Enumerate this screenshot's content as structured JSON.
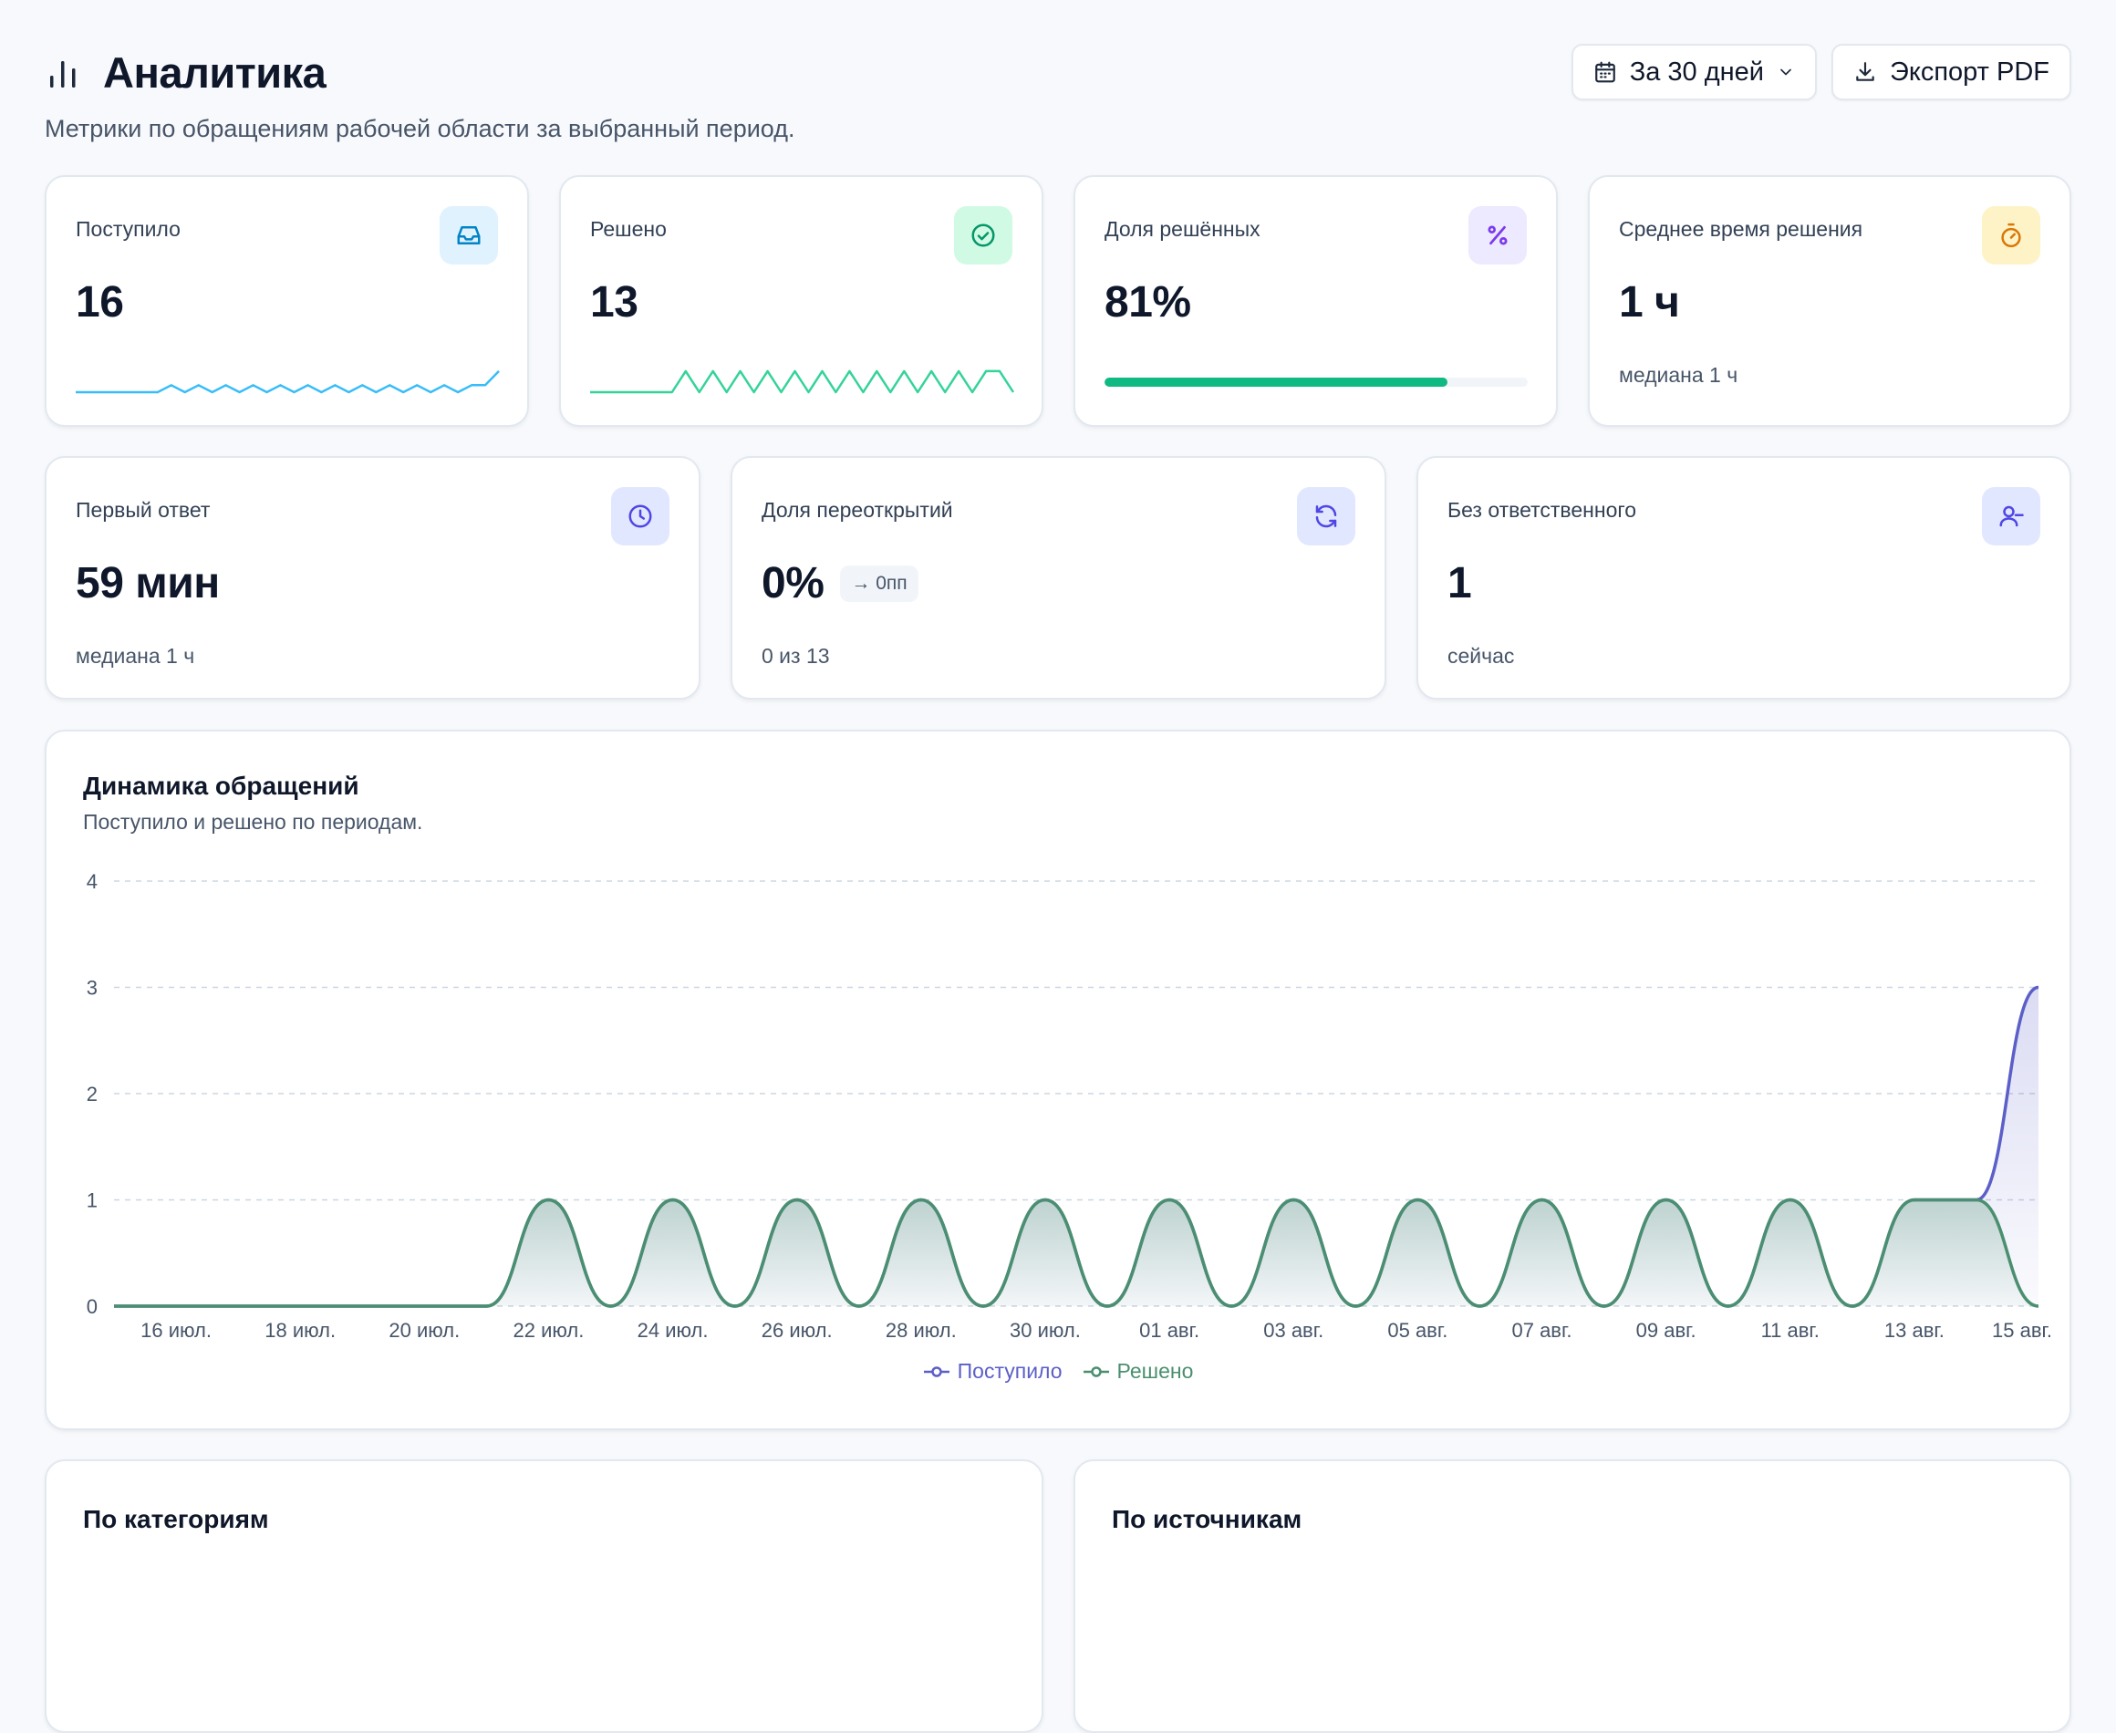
{
  "header": {
    "title": "Аналитика",
    "subtitle": "Метрики по обращениям рабочей области за выбранный период.",
    "period_label": "За 30 дней",
    "export_label": "Экспорт PDF"
  },
  "kpis": {
    "received": {
      "label": "Поступило",
      "value": "16",
      "color": "#38bdf8"
    },
    "resolved": {
      "label": "Решено",
      "value": "13",
      "color": "#34d399"
    },
    "resolved_share": {
      "label": "Доля решённых",
      "value": "81%",
      "progress": 0.81,
      "color": "#10b981"
    },
    "avg_resolution": {
      "label": "Среднее время решения",
      "value": "1 ч",
      "sub": "медиана 1 ч"
    },
    "first_response": {
      "label": "Первый ответ",
      "value": "59 мин",
      "sub": "медиана 1 ч"
    },
    "reopen_share": {
      "label": "Доля переоткрытий",
      "value": "0%",
      "trend": "→ 0пп",
      "sub": "0 из 13"
    },
    "unassigned": {
      "label": "Без ответственного",
      "value": "1",
      "sub": "сейчас"
    }
  },
  "chart": {
    "title": "Динамика обращений",
    "subtitle": "Поступило и решено по периодам."
  },
  "chart_data": {
    "type": "area",
    "x": [
      "15 июл.",
      "16 июл.",
      "17 июл.",
      "18 июл.",
      "19 июл.",
      "20 июл.",
      "21 июл.",
      "22 июл.",
      "23 июл.",
      "24 июл.",
      "25 июл.",
      "26 июл.",
      "27 июл.",
      "28 июл.",
      "29 июл.",
      "30 июл.",
      "31 июл.",
      "01 авг.",
      "02 авг.",
      "03 авг.",
      "04 авг.",
      "05 авг.",
      "06 авг.",
      "07 авг.",
      "08 авг.",
      "09 авг.",
      "10 авг.",
      "11 авг.",
      "12 авг.",
      "13 авг.",
      "14 авг.",
      "15 авг."
    ],
    "tick_labels": [
      "16 июл.",
      "18 июл.",
      "20 июл.",
      "22 июл.",
      "24 июл.",
      "26 июл.",
      "28 июл.",
      "30 июл.",
      "01 авг.",
      "03 авг.",
      "05 авг.",
      "07 авг.",
      "09 авг.",
      "11 авг.",
      "13 авг.",
      "15 авг."
    ],
    "series": [
      {
        "name": "Поступило",
        "color": "#5b5fc7",
        "values": [
          0,
          0,
          0,
          0,
          0,
          0,
          0,
          1,
          0,
          1,
          0,
          1,
          0,
          1,
          0,
          1,
          0,
          1,
          0,
          1,
          0,
          1,
          0,
          1,
          0,
          1,
          0,
          1,
          0,
          1,
          1,
          3
        ]
      },
      {
        "name": "Решено",
        "color": "#4a8f6f",
        "values": [
          0,
          0,
          0,
          0,
          0,
          0,
          0,
          1,
          0,
          1,
          0,
          1,
          0,
          1,
          0,
          1,
          0,
          1,
          0,
          1,
          0,
          1,
          0,
          1,
          0,
          1,
          0,
          1,
          0,
          1,
          1,
          0
        ]
      }
    ],
    "ylim": [
      0,
      4
    ],
    "yticks": [
      "0",
      "1",
      "2",
      "3",
      "4"
    ],
    "grid": true,
    "legend": "bottom-center"
  },
  "bottom": {
    "categories_title": "По категориям",
    "sources_title": "По источникам"
  }
}
